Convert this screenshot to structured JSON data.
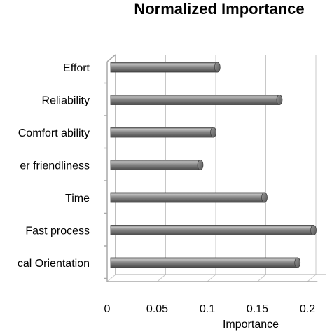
{
  "chart_data": {
    "type": "bar",
    "orientation": "horizontal",
    "style": "3d-cylinder",
    "title": "Normalized Importance",
    "xlabel": "Importance",
    "ylabel": "",
    "categories": [
      "Effort",
      "Reliability",
      "Comfort ability",
      "er friendliness",
      "Time",
      "Fast process",
      "cal Orientation"
    ],
    "values": [
      0.11,
      0.172,
      0.106,
      0.093,
      0.157,
      0.206,
      0.19
    ],
    "xlim": [
      0,
      0.21
    ],
    "xticks": [
      "0",
      "0.05",
      "0.1",
      "0.15",
      "0.2"
    ],
    "tick_values": [
      0,
      0.05,
      0.1,
      0.15,
      0.2
    ],
    "grid": true,
    "legend": "none",
    "colors": {
      "bar_body": "#7a7a7a",
      "bar_top": "#b4b4b4",
      "bar_bottom": "#4e4e4e",
      "grid": "#c8c8c8",
      "axis": "#a9a9a9"
    }
  }
}
